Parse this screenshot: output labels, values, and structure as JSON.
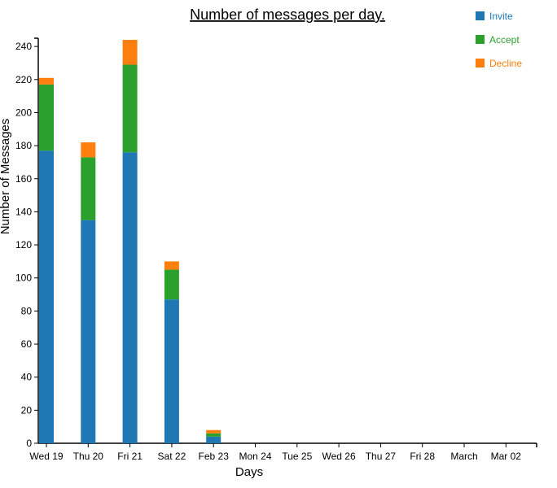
{
  "chart_data": {
    "type": "bar",
    "stacked": true,
    "title": "Number of messages per day.",
    "xlabel": "Days",
    "ylabel": "Number of Messages",
    "ylim": [
      0,
      244
    ],
    "yticks": [
      0,
      20,
      40,
      60,
      80,
      100,
      120,
      140,
      160,
      180,
      200,
      220,
      240
    ],
    "categories": [
      "Wed 19",
      "Thu 20",
      "Fri 21",
      "Sat 22",
      "Feb 23",
      "Mon 24",
      "Tue 25",
      "Wed 26",
      "Thu 27",
      "Fri 28",
      "March",
      "Mar 02"
    ],
    "series": [
      {
        "name": "Invite",
        "color": "#1f77b4",
        "values": [
          177,
          135,
          176,
          87,
          4,
          0,
          0,
          0,
          0,
          0,
          0,
          0
        ]
      },
      {
        "name": "Accept",
        "color": "#2ca02c",
        "values": [
          40,
          38,
          53,
          18,
          2,
          0,
          0,
          0,
          0,
          0,
          0,
          0
        ]
      },
      {
        "name": "Decline",
        "color": "#ff7f0e",
        "values": [
          4,
          9,
          15,
          5,
          2,
          0,
          0,
          0,
          0,
          0,
          0,
          0
        ]
      }
    ],
    "grid": false,
    "legend": "top-right"
  }
}
